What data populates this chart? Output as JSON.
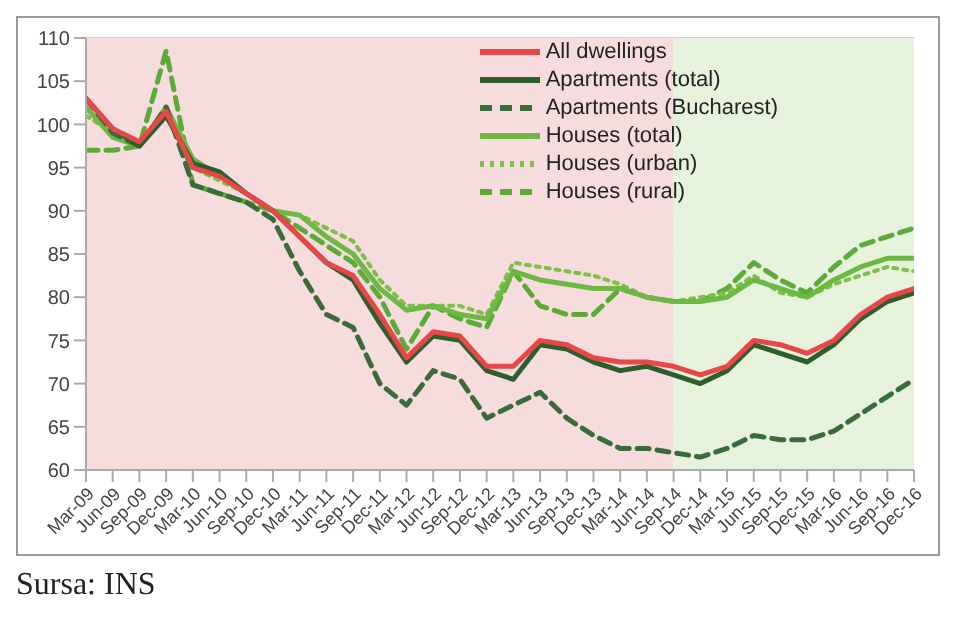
{
  "chart_data": {
    "type": "line",
    "categories": [
      "Mar-09",
      "Jun-09",
      "Sep-09",
      "Dec-09",
      "Mar-10",
      "Jun-10",
      "Sep-10",
      "Dec-10",
      "Mar-11",
      "Jun-11",
      "Sep-11",
      "Dec-11",
      "Mar-12",
      "Jun-12",
      "Sep-12",
      "Dec-12",
      "Mar-13",
      "Jun-13",
      "Sep-13",
      "Dec-13",
      "Mar-14",
      "Jun-14",
      "Sep-14",
      "Dec-14",
      "Mar-15",
      "Jun-15",
      "Sep-15",
      "Dec-15",
      "Mar-16",
      "Jun-16",
      "Sep-16",
      "Dec-16"
    ],
    "series": [
      {
        "name": "All dwellings",
        "color": "#e8474a",
        "line_style": "solid",
        "values": [
          103,
          99.5,
          98,
          101.5,
          95,
          94,
          92,
          90,
          87,
          84,
          82.5,
          78,
          73,
          76,
          75.5,
          72,
          72,
          75,
          74.5,
          73,
          72.5,
          72.5,
          72,
          71,
          72,
          75,
          74.5,
          73.5,
          75,
          78,
          80,
          81
        ]
      },
      {
        "name": "Apartments (total)",
        "color": "#2e5e2e",
        "line_style": "solid",
        "values": [
          103,
          99.5,
          97.5,
          101,
          95.5,
          94.5,
          92,
          90,
          87,
          84,
          82,
          77,
          72.5,
          75.5,
          75,
          71.5,
          70.5,
          74.5,
          74,
          72.5,
          71.5,
          72,
          71,
          70,
          71.5,
          74.5,
          73.5,
          72.5,
          74.5,
          77.5,
          79.5,
          80.5
        ]
      },
      {
        "name": "Apartments (Bucharest)",
        "color": "#3a6b3a",
        "line_style": "dashed",
        "values": [
          103,
          99,
          97.5,
          102,
          93,
          92,
          91,
          89,
          83,
          78,
          76.5,
          70,
          67.5,
          71.5,
          70.5,
          66,
          67.5,
          69,
          66,
          64,
          62.5,
          62.5,
          62,
          61.5,
          62.5,
          64,
          63.5,
          63.5,
          64.5,
          66.5,
          68.5,
          70.5
        ]
      },
      {
        "name": "Houses (total)",
        "color": "#6cb843",
        "line_style": "solid",
        "values": [
          102,
          98.5,
          97.5,
          102,
          96,
          94,
          92,
          90,
          89.5,
          87,
          85,
          81,
          78.5,
          79,
          78,
          77.5,
          83,
          82,
          81.5,
          81,
          81,
          80,
          79.5,
          79.5,
          80,
          82,
          81,
          80,
          82,
          83.5,
          84.5,
          84.5
        ]
      },
      {
        "name": "Houses (urban)",
        "color": "#7dbf4a",
        "line_style": "dotted",
        "values": [
          101,
          99,
          98,
          101,
          95,
          93.5,
          92,
          90,
          89.5,
          88,
          86.5,
          82,
          79,
          79,
          79,
          78,
          84,
          83.5,
          83,
          82.5,
          81.5,
          80,
          79.5,
          80,
          80.5,
          82.5,
          80.5,
          80,
          81.5,
          82.5,
          83.5,
          83
        ]
      },
      {
        "name": "Houses (rural)",
        "color": "#5caa3a",
        "line_style": "dashed",
        "values": [
          97,
          97,
          97.5,
          108.5,
          93,
          92,
          91,
          90,
          88,
          86,
          84,
          80,
          74,
          79,
          77.5,
          76.5,
          83,
          79,
          78,
          78,
          81,
          80,
          79.5,
          79.5,
          81,
          84,
          82,
          80.5,
          83.5,
          86,
          87,
          88
        ]
      }
    ],
    "ylim": [
      60,
      110
    ],
    "yticks": [
      60,
      65,
      70,
      75,
      80,
      85,
      90,
      95,
      100,
      105,
      110
    ],
    "grid": "y",
    "legend": "top right",
    "bands": [
      {
        "axis": "x",
        "from": "Mar-09",
        "to": "Sep-14",
        "color": "#f6dcdc"
      },
      {
        "axis": "x",
        "from": "Sep-14",
        "to": "Dec-16",
        "color": "#e6f2dc"
      }
    ],
    "annotations": [
      "Sursa: INS"
    ]
  }
}
